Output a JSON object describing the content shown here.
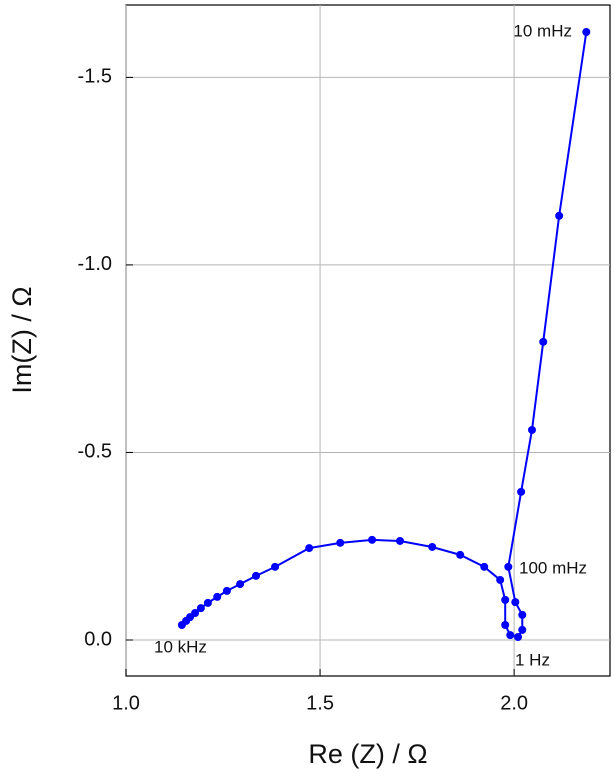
{
  "chart_data": {
    "type": "line",
    "x_label": "Re (Z) / Ω",
    "y_label": "Im(Z) / Ω",
    "color": "#0000ff",
    "grid": true,
    "xlim": [
      1.0,
      2.247
    ],
    "ylim": [
      0.096,
      -1.693
    ],
    "xticks": [
      {
        "value": 1.0,
        "label": "1.0"
      },
      1.5,
      {
        "value": 2.0,
        "label": "2.0"
      }
    ],
    "yticks": [
      {
        "value": 0,
        "label": "0.0"
      },
      -0.5,
      {
        "value": -1.0,
        "label": "-1.0"
      },
      -1.5
    ],
    "x": [
      1.144,
      1.155,
      1.165,
      1.178,
      1.193,
      1.211,
      1.235,
      1.26,
      1.294,
      1.335,
      1.384,
      1.472,
      1.552,
      1.634,
      1.706,
      1.789,
      1.861,
      1.923,
      1.964,
      1.977,
      1.977,
      1.99,
      2.01,
      2.021,
      2.021,
      2.003,
      1.985,
      2.018,
      2.046,
      2.075,
      2.116,
      2.186
    ],
    "values": [
      -0.04,
      -0.051,
      -0.061,
      -0.072,
      -0.085,
      -0.099,
      -0.115,
      -0.131,
      -0.149,
      -0.171,
      -0.195,
      -0.245,
      -0.259,
      -0.267,
      -0.264,
      -0.248,
      -0.227,
      -0.195,
      -0.16,
      -0.107,
      -0.04,
      -0.013,
      -0.008,
      -0.027,
      -0.067,
      -0.101,
      -0.195,
      -0.395,
      -0.56,
      -0.795,
      -1.131,
      -1.621
    ],
    "annotations": [
      "10 kHz",
      "1 Hz",
      "100 mHz",
      "10 mHz"
    ]
  }
}
